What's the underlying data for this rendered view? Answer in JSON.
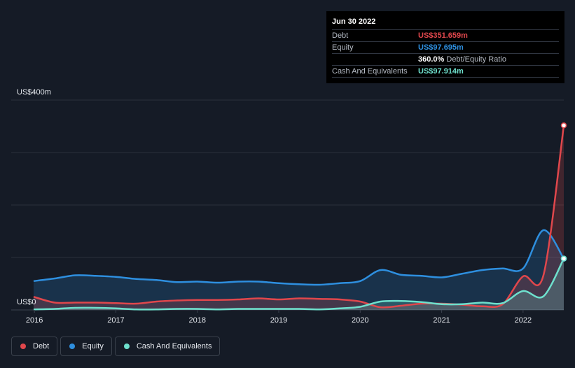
{
  "tooltip": {
    "date": "Jun 30 2022",
    "debt_label": "Debt",
    "debt_value": "US$351.659m",
    "equity_label": "Equity",
    "equity_value": "US$97.695m",
    "ratio_value": "360.0%",
    "ratio_label": "Debt/Equity Ratio",
    "cash_label": "Cash And Equivalents",
    "cash_value": "US$97.914m"
  },
  "legend": [
    {
      "label": "Debt",
      "color": "#e0474c"
    },
    {
      "label": "Equity",
      "color": "#2e8fdf"
    },
    {
      "label": "Cash And Equivalents",
      "color": "#6ee0cd"
    }
  ],
  "chart_data": {
    "type": "area",
    "y_axis_top_label": "US$400m",
    "y_axis_bottom_label": "US$0",
    "ylim": [
      0,
      400
    ],
    "xlim": [
      2015.99,
      2022.5
    ],
    "x_ticks": [
      "2016",
      "2017",
      "2018",
      "2019",
      "2020",
      "2021",
      "2022"
    ],
    "grid": true,
    "legend_position": "bottom-left",
    "colors": {
      "debt": "#e0474c",
      "equity": "#2e8fdf",
      "cash": "#6ee0cd"
    },
    "series": [
      {
        "name": "Debt",
        "key": "debt",
        "x": [
          2016.0,
          2016.25,
          2016.5,
          2016.75,
          2017.0,
          2017.25,
          2017.5,
          2017.75,
          2018.0,
          2018.25,
          2018.5,
          2018.75,
          2019.0,
          2019.25,
          2019.5,
          2019.75,
          2020.0,
          2020.25,
          2020.5,
          2020.75,
          2021.0,
          2021.25,
          2021.5,
          2021.75,
          2022.0,
          2022.25,
          2022.5
        ],
        "values": [
          25,
          14,
          14,
          14,
          13,
          12,
          16,
          18,
          19,
          19,
          20,
          22,
          20,
          22,
          21,
          20,
          16,
          5,
          8,
          12,
          12,
          10,
          7,
          11,
          64,
          66,
          351.659
        ]
      },
      {
        "name": "Equity",
        "key": "equity",
        "x": [
          2016.0,
          2016.25,
          2016.5,
          2016.75,
          2017.0,
          2017.25,
          2017.5,
          2017.75,
          2018.0,
          2018.25,
          2018.5,
          2018.75,
          2019.0,
          2019.25,
          2019.5,
          2019.75,
          2020.0,
          2020.25,
          2020.5,
          2020.75,
          2021.0,
          2021.25,
          2021.5,
          2021.75,
          2022.0,
          2022.25,
          2022.5
        ],
        "values": [
          55,
          60,
          66,
          65,
          63,
          59,
          57,
          53,
          54,
          52,
          54,
          54,
          51,
          49,
          48,
          51,
          55,
          76,
          67,
          65,
          62,
          69,
          76,
          79,
          79,
          152,
          97.695
        ]
      },
      {
        "name": "Cash And Equivalents",
        "key": "cash",
        "x": [
          2016.0,
          2016.25,
          2016.5,
          2016.75,
          2017.0,
          2017.25,
          2017.5,
          2017.75,
          2018.0,
          2018.25,
          2018.5,
          2018.75,
          2019.0,
          2019.25,
          2019.5,
          2019.75,
          2020.0,
          2020.25,
          2020.5,
          2020.75,
          2021.0,
          2021.25,
          2021.5,
          2021.75,
          2022.0,
          2022.25,
          2022.5
        ],
        "values": [
          1,
          2,
          4,
          4,
          3,
          1,
          1,
          2,
          2,
          1,
          2,
          2,
          2,
          2,
          1,
          3,
          6,
          16,
          17,
          15,
          11,
          11,
          14,
          13,
          36,
          26,
          97.914
        ]
      }
    ]
  }
}
